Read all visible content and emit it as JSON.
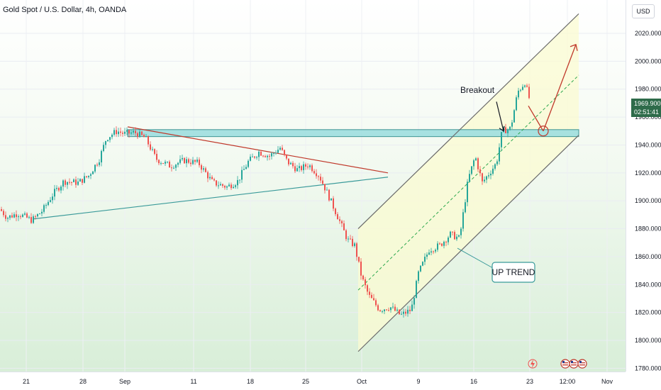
{
  "header": {
    "title": "Gold Spot / U.S. Dollar, 4h, OANDA",
    "currency": "USD"
  },
  "price_label": {
    "price": "1969.900",
    "countdown": "02:51:41"
  },
  "colors": {
    "up_candle": "#26a69a",
    "down_candle": "#ef5350",
    "channel_line": "#6b6b6b",
    "support_zone_fill": "#9fdfe0",
    "support_zone_border": "#2d8a8a",
    "resistance_line": "#c0392b",
    "support_line": "#3a9a9a",
    "projection_arrow": "#c0392b",
    "midline": "#2ea84f",
    "price_tag": "#2e6b4a"
  },
  "chart_data": {
    "type": "candlestick",
    "title": "Gold Spot / U.S. Dollar, 4h, OANDA",
    "y_axis": {
      "ticks": [
        1780,
        1800,
        1820,
        1840,
        1860,
        1880,
        1900,
        1920,
        1940,
        1960,
        1980,
        2000,
        2020
      ],
      "tick_labels": [
        "1780.000",
        "1800.000",
        "1820.000",
        "1840.000",
        "1860.000",
        "1880.000",
        "1900.000",
        "1920.000",
        "1940.000",
        "1960.000",
        "1980.000",
        "2000.000",
        "2020.000"
      ],
      "ylim": [
        1774,
        2040
      ]
    },
    "x_axis": {
      "tick_labels": [
        "21",
        "28",
        "Sep",
        "11",
        "18",
        "25",
        "Oct",
        "9",
        "16",
        "23",
        "12:00",
        "Nov"
      ]
    },
    "grid": true,
    "price_path": [
      [
        0,
        1894
      ],
      [
        10,
        1888
      ],
      [
        25,
        1891
      ],
      [
        45,
        1886
      ],
      [
        60,
        1893
      ],
      [
        75,
        1905
      ],
      [
        90,
        1914
      ],
      [
        110,
        1913
      ],
      [
        125,
        1918
      ],
      [
        140,
        1930
      ],
      [
        150,
        1945
      ],
      [
        165,
        1950
      ],
      [
        175,
        1948
      ],
      [
        190,
        1949
      ],
      [
        205,
        1945
      ],
      [
        220,
        1930
      ],
      [
        240,
        1925
      ],
      [
        260,
        1929
      ],
      [
        280,
        1927
      ],
      [
        300,
        1913
      ],
      [
        320,
        1910
      ],
      [
        335,
        1914
      ],
      [
        350,
        1928
      ],
      [
        365,
        1935
      ],
      [
        380,
        1932
      ],
      [
        395,
        1938
      ],
      [
        405,
        1928
      ],
      [
        420,
        1922
      ],
      [
        435,
        1926
      ],
      [
        450,
        1918
      ],
      [
        462,
        1905
      ],
      [
        475,
        1890
      ],
      [
        490,
        1872
      ],
      [
        500,
        1868
      ],
      [
        510,
        1845
      ],
      [
        520,
        1832
      ],
      [
        535,
        1822
      ],
      [
        550,
        1824
      ],
      [
        565,
        1818
      ],
      [
        580,
        1822
      ],
      [
        590,
        1848
      ],
      [
        605,
        1865
      ],
      [
        620,
        1868
      ],
      [
        635,
        1876
      ],
      [
        648,
        1873
      ],
      [
        660,
        1915
      ],
      [
        670,
        1932
      ],
      [
        680,
        1913
      ],
      [
        690,
        1920
      ],
      [
        700,
        1927
      ],
      [
        708,
        1950
      ],
      [
        720,
        1952
      ],
      [
        730,
        1978
      ],
      [
        740,
        1985
      ],
      [
        748,
        1970
      ]
    ],
    "annotations": [
      {
        "text": "Breakout",
        "arrow_from": [
          700,
          1971
        ],
        "arrow_to": [
          710,
          1950
        ]
      },
      {
        "text": "UP TREND",
        "points_to": [
          645,
          1866
        ]
      }
    ],
    "support_zone": {
      "x_range": [
        180,
        816
      ],
      "y_range": [
        1946,
        1951
      ]
    },
    "ascending_channel": {
      "upper": [
        [
          505,
          1880
        ],
        [
          816,
          2034
        ]
      ],
      "lower": [
        [
          505,
          1792
        ],
        [
          816,
          1947
        ]
      ],
      "mid": [
        [
          505,
          1836
        ],
        [
          816,
          1990
        ]
      ]
    },
    "triangle": {
      "resistance": [
        [
          180,
          1953
        ],
        [
          547,
          1920
        ]
      ],
      "support": [
        [
          47,
          1887
        ],
        [
          547,
          1917
        ]
      ]
    },
    "projection": {
      "down": [
        [
          745,
          1968
        ],
        [
          766,
          1950
        ]
      ],
      "up": [
        [
          766,
          1950
        ],
        [
          812,
          2012
        ]
      ],
      "circle": [
        766,
        1950
      ]
    }
  }
}
